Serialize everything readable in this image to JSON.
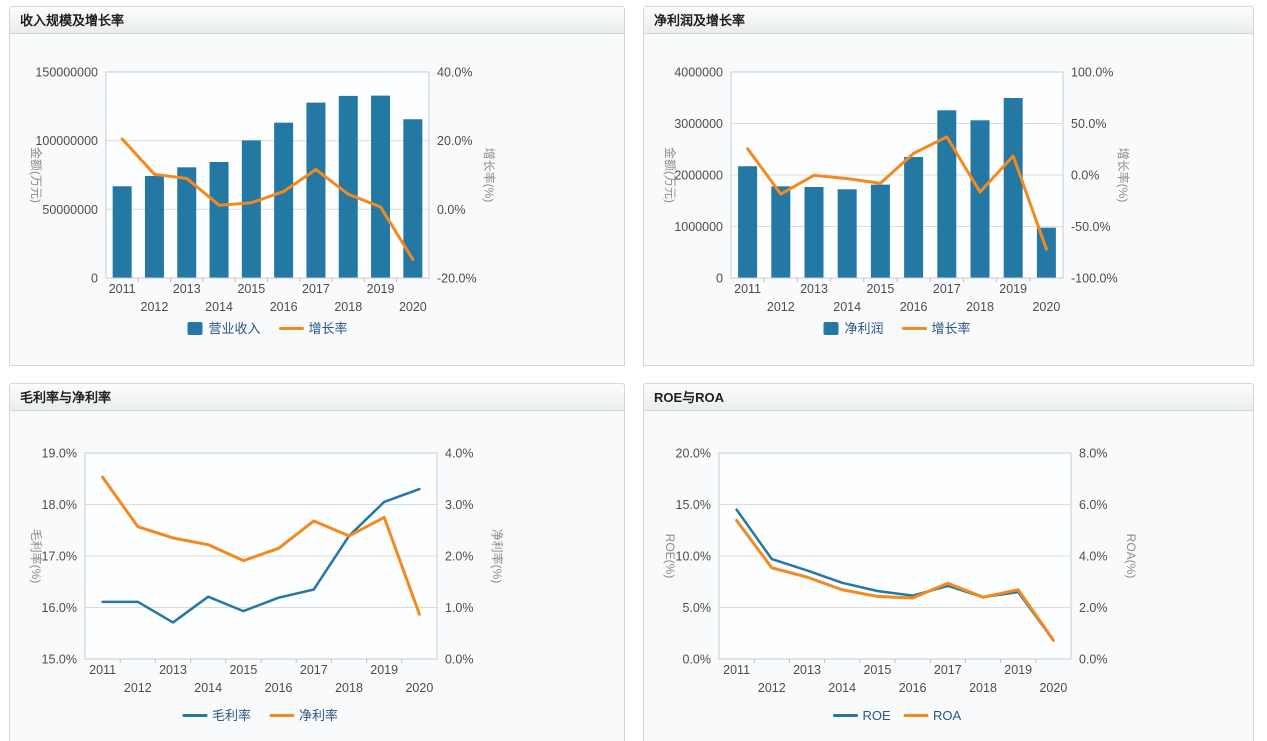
{
  "colors": {
    "bar_blue": "#2478A4",
    "line_orange": "#F5891D",
    "legend_text": "#2A5783",
    "tick_text": "#4d4d4d",
    "axis_title_text": "#8c8c8c",
    "gridline": "#dcdcdc",
    "plot_border": "#c6ccd2",
    "plot_bg": "#fdfeff"
  },
  "chart_data": [
    {
      "id": "revenue-growth",
      "type": "bar",
      "title": "收入规模及增长率",
      "categories": [
        "2011",
        "2012",
        "2013",
        "2014",
        "2015",
        "2016",
        "2017",
        "2018",
        "2019",
        "2020"
      ],
      "left_axis": {
        "title": "金额(万元)",
        "min": 0,
        "max": 150000000,
        "ticks": [
          0,
          50000000,
          100000000,
          150000000
        ],
        "format": "int"
      },
      "right_axis": {
        "title": "增长率(%)",
        "min": -20,
        "max": 40,
        "ticks": [
          -20,
          0,
          20,
          40
        ],
        "format": "pct1"
      },
      "series": [
        {
          "id": "revenue",
          "name": "营业收入",
          "type": "bar",
          "axis": "left",
          "color": "#2478A4",
          "values": [
            66800000,
            74300000,
            80600000,
            84500000,
            100200000,
            113100000,
            127700000,
            132600000,
            132800000,
            115600000
          ]
        },
        {
          "id": "growth-rate",
          "name": "增长率",
          "type": "line",
          "axis": "right",
          "color": "#F5891D",
          "values": [
            20.5,
            10.2,
            9.0,
            1.2,
            1.9,
            5.2,
            11.6,
            4.4,
            0.7,
            -14.6
          ]
        }
      ],
      "legend_position": "bottom",
      "grid": true
    },
    {
      "id": "netprofit-growth",
      "type": "bar",
      "title": "净利润及增长率",
      "categories": [
        "2011",
        "2012",
        "2013",
        "2014",
        "2015",
        "2016",
        "2017",
        "2018",
        "2019",
        "2020"
      ],
      "left_axis": {
        "title": "金额(万元)",
        "min": 0,
        "max": 4000000,
        "ticks": [
          0,
          1000000,
          2000000,
          3000000,
          4000000
        ],
        "format": "int"
      },
      "right_axis": {
        "title": "增长率(%)",
        "min": -100,
        "max": 100,
        "ticks": [
          -100,
          -50,
          0,
          50,
          100
        ],
        "format": "pct1"
      },
      "series": [
        {
          "id": "net-profit",
          "name": "净利润",
          "type": "bar",
          "axis": "left",
          "color": "#2478A4",
          "values": [
            2170000,
            1780000,
            1767000,
            1722000,
            1813000,
            2350000,
            3256000,
            3062000,
            3495000,
            977000
          ]
        },
        {
          "id": "growth-rate",
          "name": "增长率",
          "type": "line",
          "axis": "right",
          "color": "#F5891D",
          "values": [
            25.5,
            -18.5,
            -0.3,
            -3.5,
            -8.0,
            21.0,
            37.0,
            -16.5,
            18.5,
            -72.0
          ]
        }
      ],
      "legend_position": "bottom",
      "grid": true
    },
    {
      "id": "margins",
      "type": "line",
      "title": "毛利率与净利率",
      "categories": [
        "2011",
        "2012",
        "2013",
        "2014",
        "2015",
        "2016",
        "2017",
        "2018",
        "2019",
        "2020"
      ],
      "left_axis": {
        "title": "毛利率(%)",
        "min": 15,
        "max": 19,
        "ticks": [
          15,
          16,
          17,
          18,
          19
        ],
        "format": "pct1"
      },
      "right_axis": {
        "title": "净利率(%)",
        "min": 0,
        "max": 4,
        "ticks": [
          0,
          1,
          2,
          3,
          4
        ],
        "format": "pct1"
      },
      "series": [
        {
          "id": "gross-margin",
          "name": "毛利率",
          "type": "line",
          "axis": "left",
          "color": "#2478A4",
          "values": [
            16.11,
            16.11,
            15.71,
            16.21,
            15.93,
            16.19,
            16.35,
            17.39,
            18.05,
            18.3
          ]
        },
        {
          "id": "net-margin",
          "name": "净利率",
          "type": "line",
          "axis": "right",
          "color": "#F5891D",
          "values": [
            3.53,
            2.57,
            2.35,
            2.22,
            1.91,
            2.15,
            2.68,
            2.39,
            2.75,
            0.87
          ]
        }
      ],
      "legend_position": "bottom",
      "grid": true
    },
    {
      "id": "roe-roa",
      "type": "line",
      "title": "ROE与ROA",
      "categories": [
        "2011",
        "2012",
        "2013",
        "2014",
        "2015",
        "2016",
        "2017",
        "2018",
        "2019",
        "2020"
      ],
      "left_axis": {
        "title": "ROE(%)",
        "min": 0,
        "max": 20,
        "ticks": [
          0,
          5,
          10,
          15,
          20
        ],
        "format": "pct1"
      },
      "right_axis": {
        "title": "ROA(%)",
        "min": 0,
        "max": 8,
        "ticks": [
          0,
          2,
          4,
          6,
          8
        ],
        "format": "pct1"
      },
      "series": [
        {
          "id": "roe",
          "name": "ROE",
          "type": "line",
          "axis": "left",
          "color": "#2478A4",
          "values": [
            14.5,
            9.7,
            8.6,
            7.4,
            6.6,
            6.15,
            7.1,
            6.0,
            6.5,
            1.8
          ]
        },
        {
          "id": "roa",
          "name": "ROA",
          "type": "line",
          "axis": "right",
          "color": "#F5891D",
          "values": [
            5.38,
            3.54,
            3.18,
            2.69,
            2.43,
            2.37,
            2.94,
            2.4,
            2.69,
            0.73
          ]
        }
      ],
      "legend_position": "bottom",
      "grid": true
    }
  ]
}
